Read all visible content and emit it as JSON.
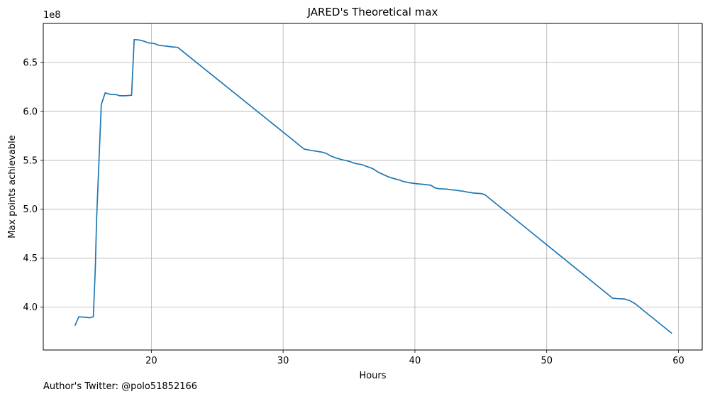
{
  "chart_data": {
    "type": "line",
    "title": "JARED's Theoretical max",
    "xlabel": "Hours",
    "ylabel": "Max points achievable",
    "y_offset_label": "1e8",
    "xlim": [
      11.8,
      61.8
    ],
    "ylim": [
      3.56,
      6.9
    ],
    "x_ticks": [
      20,
      30,
      40,
      50,
      60
    ],
    "x_tick_labels": [
      "20",
      "30",
      "40",
      "50",
      "60"
    ],
    "y_ticks": [
      4.0,
      4.5,
      5.0,
      5.5,
      6.0,
      6.5
    ],
    "y_tick_labels": [
      "4.0",
      "4.5",
      "5.0",
      "5.5",
      "6.0",
      "6.5"
    ],
    "grid": true,
    "series": [
      {
        "color": "#1f77b4",
        "x": [
          14.2,
          14.5,
          15.0,
          15.3,
          15.6,
          15.75,
          15.85,
          16.0,
          16.2,
          16.5,
          16.9,
          17.4,
          17.6,
          18.0,
          18.5,
          18.7,
          19.1,
          19.4,
          19.8,
          20.2,
          20.6,
          21.0,
          21.6,
          22.0,
          31.6,
          32.0,
          32.4,
          32.9,
          33.3,
          33.6,
          34.0,
          34.5,
          35.0,
          35.4,
          36.0,
          36.4,
          36.8,
          37.2,
          37.6,
          38.0,
          38.5,
          38.8,
          39.1,
          39.6,
          40.2,
          40.6,
          41.2,
          41.5,
          41.8,
          42.4,
          43.0,
          43.6,
          44.0,
          44.5,
          45.0,
          45.3,
          55.0,
          55.4,
          55.9,
          56.3,
          56.7,
          59.5
        ],
        "y": [
          3.81,
          3.9,
          3.895,
          3.89,
          3.9,
          4.4,
          4.9,
          5.4,
          6.07,
          6.19,
          6.175,
          6.17,
          6.16,
          6.16,
          6.165,
          6.735,
          6.73,
          6.72,
          6.7,
          6.695,
          6.675,
          6.67,
          6.66,
          6.655,
          5.615,
          5.605,
          5.595,
          5.585,
          5.57,
          5.545,
          5.525,
          5.505,
          5.49,
          5.47,
          5.455,
          5.435,
          5.415,
          5.38,
          5.355,
          5.33,
          5.31,
          5.3,
          5.285,
          5.27,
          5.26,
          5.255,
          5.245,
          5.22,
          5.21,
          5.205,
          5.195,
          5.185,
          5.175,
          5.165,
          5.16,
          5.15,
          4.09,
          4.085,
          4.082,
          4.065,
          4.035,
          3.73
        ]
      }
    ]
  },
  "footnote": "Author's Twitter: @polo51852166"
}
